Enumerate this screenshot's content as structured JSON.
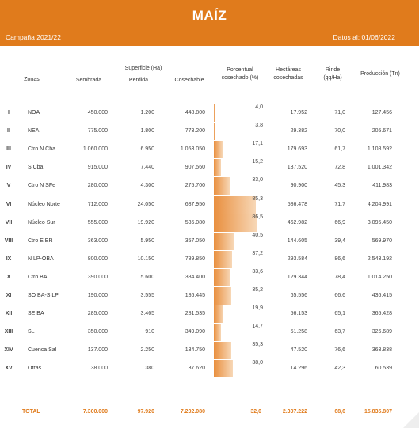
{
  "header": {
    "title": "MAÍZ",
    "campaign": "Campaña 2021/22",
    "date_info": "Datos al: 01/06/2022"
  },
  "columns": {
    "zonas": "Zonas",
    "superficie_group": "Superficie (Ha)",
    "sembrada": "Sembrada",
    "perdida": "Perdida",
    "cosechable": "Cosechable",
    "porcentual_1": "Porcentual",
    "porcentual_2": "cosechado (%)",
    "hectareas_1": "Hectáreas",
    "hectareas_2": "cosechadas",
    "rinde_1": "Rinde",
    "rinde_2": "(qq/Ha)",
    "produccion": "Producción (Tn)"
  },
  "rows": [
    {
      "roman": "I",
      "zona": "NOA",
      "sembrada": "450.000",
      "perdida": "1.200",
      "cosechable": "448.800",
      "pct": "4,0",
      "pct_value": 4.0,
      "hectareas": "17.952",
      "rinde": "71,0",
      "produccion": "127.456"
    },
    {
      "roman": "II",
      "zona": "NEA",
      "sembrada": "775.000",
      "perdida": "1.800",
      "cosechable": "773.200",
      "pct": "3,8",
      "pct_value": 3.8,
      "hectareas": "29.382",
      "rinde": "70,0",
      "produccion": "205.671"
    },
    {
      "roman": "III",
      "zona": "Ctro N Cba",
      "sembrada": "1.060.000",
      "perdida": "6.950",
      "cosechable": "1.053.050",
      "pct": "17,1",
      "pct_value": 17.1,
      "hectareas": "179.693",
      "rinde": "61,7",
      "produccion": "1.108.592"
    },
    {
      "roman": "IV",
      "zona": "S Cba",
      "sembrada": "915.000",
      "perdida": "7.440",
      "cosechable": "907.560",
      "pct": "15,2",
      "pct_value": 15.2,
      "hectareas": "137.520",
      "rinde": "72,8",
      "produccion": "1.001.342"
    },
    {
      "roman": "V",
      "zona": "Ctro N SFe",
      "sembrada": "280.000",
      "perdida": "4.300",
      "cosechable": "275.700",
      "pct": "33,0",
      "pct_value": 33.0,
      "hectareas": "90.900",
      "rinde": "45,3",
      "produccion": "411.983"
    },
    {
      "roman": "VI",
      "zona": "Núcleo Norte",
      "sembrada": "712.000",
      "perdida": "24.050",
      "cosechable": "687.950",
      "pct": "85,3",
      "pct_value": 85.3,
      "hectareas": "586.478",
      "rinde": "71,7",
      "produccion": "4.204.991"
    },
    {
      "roman": "VII",
      "zona": "Núcleo Sur",
      "sembrada": "555.000",
      "perdida": "19.920",
      "cosechable": "535.080",
      "pct": "86,5",
      "pct_value": 86.5,
      "hectareas": "462.982",
      "rinde": "66,9",
      "produccion": "3.095.450"
    },
    {
      "roman": "VIII",
      "zona": "Ctro E ER",
      "sembrada": "363.000",
      "perdida": "5.950",
      "cosechable": "357.050",
      "pct": "40,5",
      "pct_value": 40.5,
      "hectareas": "144.605",
      "rinde": "39,4",
      "produccion": "569.970"
    },
    {
      "roman": "IX",
      "zona": "N LP-OBA",
      "sembrada": "800.000",
      "perdida": "10.150",
      "cosechable": "789.850",
      "pct": "37,2",
      "pct_value": 37.2,
      "hectareas": "293.584",
      "rinde": "86,6",
      "produccion": "2.543.192"
    },
    {
      "roman": "X",
      "zona": "Ctro BA",
      "sembrada": "390.000",
      "perdida": "5.600",
      "cosechable": "384.400",
      "pct": "33,6",
      "pct_value": 33.6,
      "hectareas": "129.344",
      "rinde": "78,4",
      "produccion": "1.014.250"
    },
    {
      "roman": "XI",
      "zona": "SO BA-S LP",
      "sembrada": "190.000",
      "perdida": "3.555",
      "cosechable": "186.445",
      "pct": "35,2",
      "pct_value": 35.2,
      "hectareas": "65.556",
      "rinde": "66,6",
      "produccion": "436.415"
    },
    {
      "roman": "XII",
      "zona": "SE BA",
      "sembrada": "285.000",
      "perdida": "3.465",
      "cosechable": "281.535",
      "pct": "19,9",
      "pct_value": 19.9,
      "hectareas": "56.153",
      "rinde": "65,1",
      "produccion": "365.428"
    },
    {
      "roman": "XIII",
      "zona": "SL",
      "sembrada": "350.000",
      "perdida": "910",
      "cosechable": "349.090",
      "pct": "14,7",
      "pct_value": 14.7,
      "hectareas": "51.258",
      "rinde": "63,7",
      "produccion": "326.689"
    },
    {
      "roman": "XIV",
      "zona": "Cuenca Sal",
      "sembrada": "137.000",
      "perdida": "2.250",
      "cosechable": "134.750",
      "pct": "35,3",
      "pct_value": 35.3,
      "hectareas": "47.520",
      "rinde": "76,6",
      "produccion": "363.838"
    },
    {
      "roman": "XV",
      "zona": "Otras",
      "sembrada": "38.000",
      "perdida": "380",
      "cosechable": "37.620",
      "pct": "38,0",
      "pct_value": 38.0,
      "hectareas": "14.296",
      "rinde": "42,3",
      "produccion": "60.539"
    }
  ],
  "total": {
    "label": "TOTAL",
    "sembrada": "7.300.000",
    "perdida": "97.920",
    "cosechable": "7.202.080",
    "pct": "32,0",
    "hectareas": "2.307.222",
    "rinde": "68,6",
    "produccion": "15.835.807"
  },
  "colors": {
    "accent": "#E07B1C",
    "bar_start": "#E98F3E",
    "bar_end": "#F7D7B6"
  }
}
